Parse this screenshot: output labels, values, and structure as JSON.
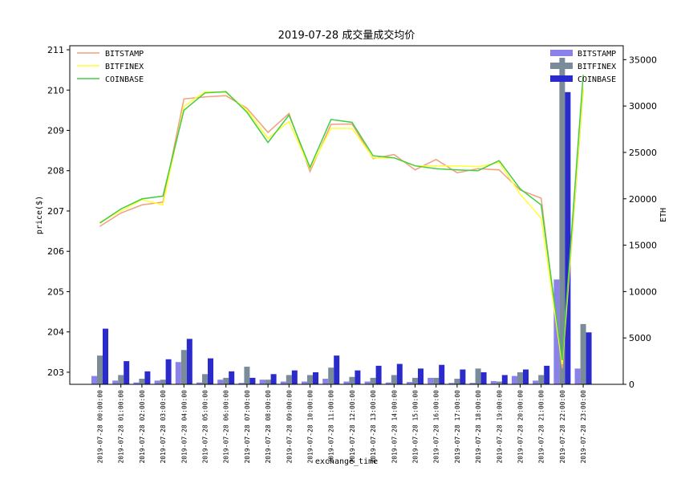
{
  "chart_data": {
    "type": "line+bar",
    "title": "2019-07-28 成交量成交均价",
    "xlabel": "exchange_time",
    "ylabel_left": "price($)",
    "ylabel_right": "ETH",
    "ylim_left": [
      202.7,
      211.1
    ],
    "ylim_right": [
      0,
      36500
    ],
    "yticks_left": [
      "203",
      "204",
      "205",
      "206",
      "207",
      "208",
      "209",
      "210",
      "211"
    ],
    "yticks_right": [
      "0",
      "5000",
      "10000",
      "15000",
      "20000",
      "25000",
      "30000",
      "35000"
    ],
    "grid": false,
    "legend_left_position": "top-left",
    "legend_right_position": "top-right",
    "categories": [
      "2019-07-28 00:00:00",
      "2019-07-28 01:00:00",
      "2019-07-28 02:00:00",
      "2019-07-28 03:00:00",
      "2019-07-28 04:00:00",
      "2019-07-28 05:00:00",
      "2019-07-28 06:00:00",
      "2019-07-28 07:00:00",
      "2019-07-28 08:00:00",
      "2019-07-28 09:00:00",
      "2019-07-28 10:00:00",
      "2019-07-28 11:00:00",
      "2019-07-28 12:00:00",
      "2019-07-28 13:00:00",
      "2019-07-28 14:00:00",
      "2019-07-28 15:00:00",
      "2019-07-28 16:00:00",
      "2019-07-28 17:00:00",
      "2019-07-28 18:00:00",
      "2019-07-28 19:00:00",
      "2019-07-28 20:00:00",
      "2019-07-28 21:00:00",
      "2019-07-28 22:00:00",
      "2019-07-28 23:00:00"
    ],
    "price_series": [
      {
        "name": "BITSTAMP",
        "color": "#f0a07a",
        "values": [
          206.62,
          206.95,
          207.15,
          207.22,
          209.78,
          209.83,
          209.86,
          209.55,
          208.95,
          209.42,
          207.98,
          209.15,
          209.16,
          208.3,
          208.4,
          208.02,
          208.28,
          207.95,
          208.05,
          208.02,
          207.52,
          207.32,
          203.1,
          210.0
        ]
      },
      {
        "name": "BITFINEX",
        "color": "#ffff33",
        "values": [
          206.72,
          207.0,
          207.28,
          207.15,
          209.6,
          209.96,
          209.94,
          209.5,
          208.8,
          209.22,
          208.05,
          209.05,
          209.05,
          208.32,
          208.32,
          208.12,
          208.12,
          208.12,
          208.1,
          208.2,
          207.42,
          206.82,
          203.2,
          210.05
        ]
      },
      {
        "name": "COINBASE",
        "color": "#44cc44",
        "values": [
          206.7,
          207.05,
          207.3,
          207.37,
          209.5,
          209.93,
          209.96,
          209.45,
          208.7,
          209.38,
          208.08,
          209.27,
          209.2,
          208.37,
          208.32,
          208.12,
          208.05,
          208.02,
          208.0,
          208.25,
          207.55,
          207.15,
          203.3,
          210.38
        ]
      }
    ],
    "volume_series": [
      {
        "name": "BITSTAMP",
        "color": "#8a82e8",
        "values": [
          900,
          400,
          200,
          400,
          2400,
          200,
          500,
          150,
          500,
          300,
          300,
          600,
          300,
          300,
          200,
          250,
          700,
          150,
          150,
          350,
          900,
          400,
          11300,
          1700
        ]
      },
      {
        "name": "BITFINEX",
        "color": "#7a8c99",
        "values": [
          3100,
          1000,
          600,
          500,
          3700,
          1100,
          700,
          1900,
          500,
          1000,
          1000,
          1800,
          800,
          700,
          1000,
          700,
          700,
          600,
          1700,
          300,
          1300,
          1000,
          35200,
          6500
        ]
      },
      {
        "name": "COINBASE",
        "color": "#2b2bcc",
        "values": [
          6000,
          2500,
          1400,
          2700,
          4900,
          2800,
          1400,
          700,
          1100,
          1500,
          1300,
          3100,
          1500,
          2000,
          2200,
          1700,
          2100,
          1600,
          1300,
          1000,
          1600,
          2000,
          31500,
          5600
        ]
      }
    ]
  }
}
